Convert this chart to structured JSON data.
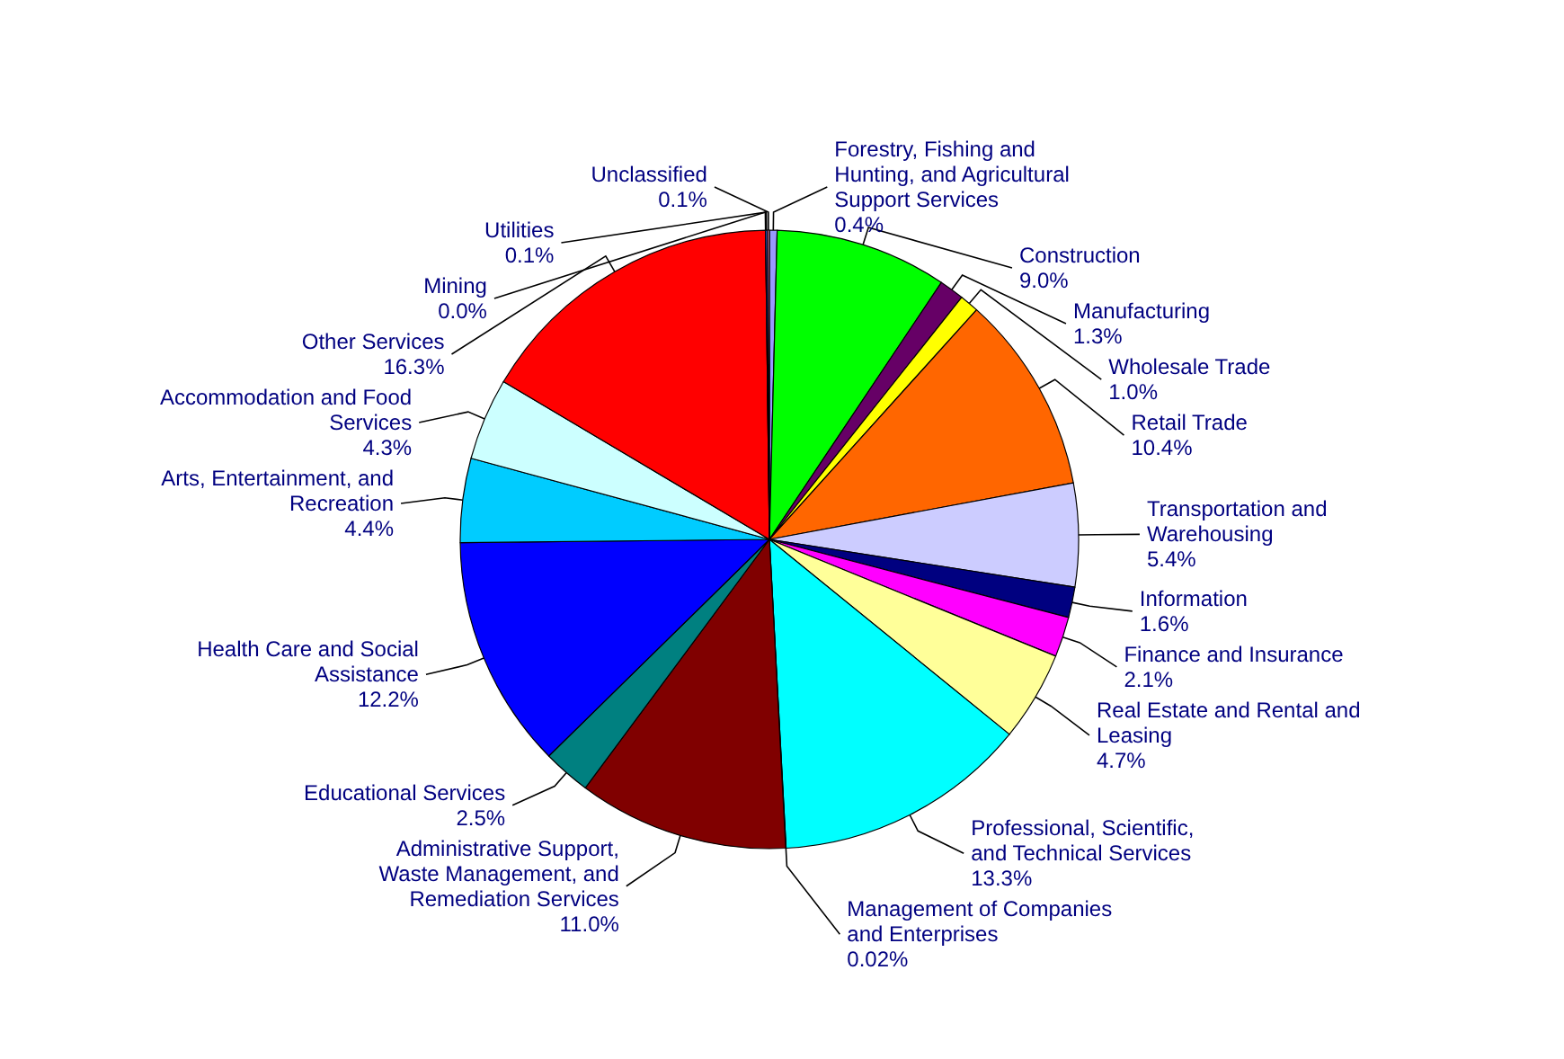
{
  "chart_data": {
    "type": "pie",
    "categories": [
      "Forestry, Fishing and Hunting, and Agricultural Support Services",
      "Construction",
      "Manufacturing",
      "Wholesale Trade",
      "Retail Trade",
      "Transportation and Warehousing",
      "Information",
      "Finance and Insurance",
      "Real Estate and Rental and Leasing",
      "Professional, Scientific, and Technical Services",
      "Management of Companies and Enterprises",
      "Administrative Support, Waste Management, and Remediation Services",
      "Educational Services",
      "Health Care and Social Assistance",
      "Arts, Entertainment, and Recreation",
      "Accommodation and Food Services",
      "Other Services",
      "Mining",
      "Utilities",
      "Unclassified"
    ],
    "values": [
      0.4,
      9.0,
      1.3,
      1.0,
      10.4,
      5.4,
      1.6,
      2.1,
      4.7,
      13.3,
      0.02,
      11.0,
      2.5,
      12.2,
      4.4,
      4.3,
      16.3,
      0.0,
      0.1,
      0.1
    ],
    "value_labels": [
      "0.4%",
      "9.0%",
      "1.3%",
      "1.0%",
      "10.4%",
      "5.4%",
      "1.6%",
      "2.1%",
      "4.7%",
      "13.3%",
      "0.02%",
      "11.0%",
      "2.5%",
      "12.2%",
      "4.4%",
      "4.3%",
      "16.3%",
      "0.0%",
      "0.1%",
      "0.1%"
    ],
    "colors": [
      "#9999ff",
      "#00ff00",
      "#660066",
      "#ffff00",
      "#ff6600",
      "#ccccff",
      "#000080",
      "#ff00ff",
      "#ffff99",
      "#00ffff",
      "#993366",
      "#800000",
      "#008080",
      "#0000ff",
      "#00ccff",
      "#ccffff",
      "#ff0000",
      "#808080",
      "#3366ff",
      "#ff99cc"
    ],
    "legend": false
  }
}
